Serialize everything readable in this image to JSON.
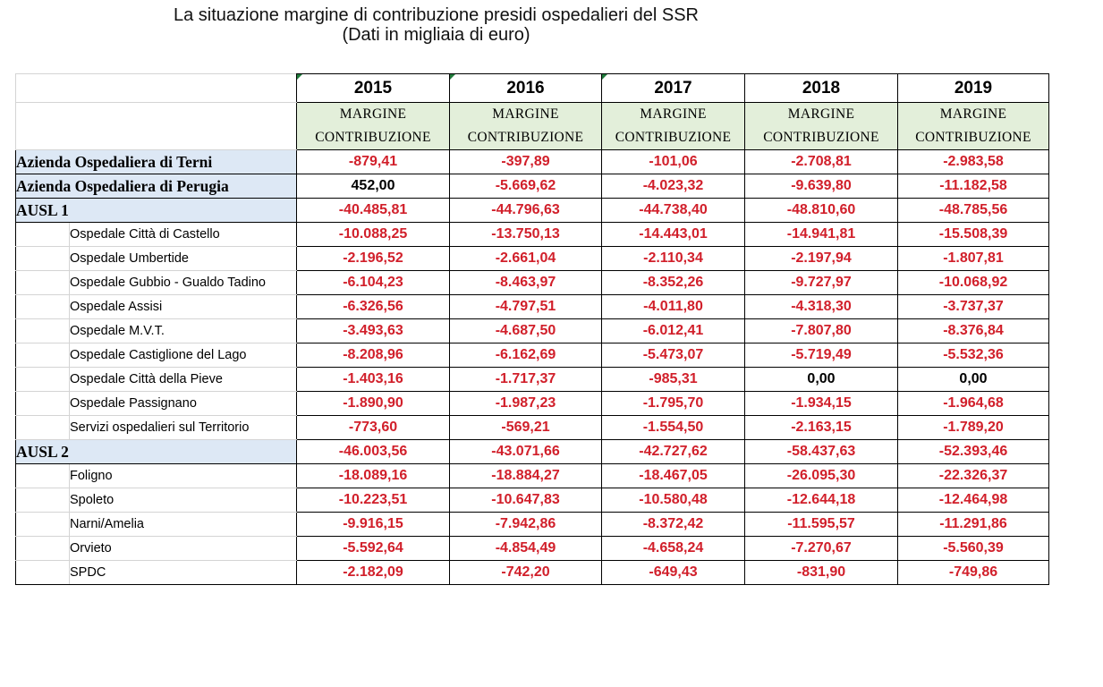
{
  "title": {
    "line1": "La situazione margine di contribuzione presidi ospedalieri del SSR",
    "line2": "(Dati in migliaia di euro)"
  },
  "table": {
    "years": [
      "2015",
      "2016",
      "2017",
      "2018",
      "2019"
    ],
    "metric_label": {
      "line1": "MARGINE",
      "line2": "CONTRIBUZIONE"
    },
    "rows": [
      {
        "label": "Azienda Ospedaliera di Terni",
        "level": "top",
        "values": [
          "-879,41",
          "-397,89",
          "-101,06",
          "-2.708,81",
          "-2.983,58"
        ]
      },
      {
        "label": "Azienda Ospedaliera di Perugia",
        "level": "top",
        "values": [
          "452,00",
          "-5.669,62",
          "-4.023,32",
          "-9.639,80",
          "-11.182,58"
        ]
      },
      {
        "label": "AUSL 1",
        "level": "ausl",
        "values": [
          "-40.485,81",
          "-44.796,63",
          "-44.738,40",
          "-48.810,60",
          "-48.785,56"
        ]
      },
      {
        "label": "Ospedale Città di Castello",
        "level": "sub",
        "values": [
          "-10.088,25",
          "-13.750,13",
          "-14.443,01",
          "-14.941,81",
          "-15.508,39"
        ]
      },
      {
        "label": "Ospedale Umbertide",
        "level": "sub",
        "values": [
          "-2.196,52",
          "-2.661,04",
          "-2.110,34",
          "-2.197,94",
          "-1.807,81"
        ]
      },
      {
        "label": "Ospedale Gubbio - Gualdo Tadino",
        "level": "sub",
        "values": [
          "-6.104,23",
          "-8.463,97",
          "-8.352,26",
          "-9.727,97",
          "-10.068,92"
        ]
      },
      {
        "label": "Ospedale Assisi",
        "level": "sub",
        "values": [
          "-6.326,56",
          "-4.797,51",
          "-4.011,80",
          "-4.318,30",
          "-3.737,37"
        ]
      },
      {
        "label": "Ospedale M.V.T.",
        "level": "sub",
        "values": [
          "-3.493,63",
          "-4.687,50",
          "-6.012,41",
          "-7.807,80",
          "-8.376,84"
        ]
      },
      {
        "label": "Ospedale Castiglione del Lago",
        "level": "sub",
        "values": [
          "-8.208,96",
          "-6.162,69",
          "-5.473,07",
          "-5.719,49",
          "-5.532,36"
        ]
      },
      {
        "label": "Ospedale Città della Pieve",
        "level": "sub",
        "values": [
          "-1.403,16",
          "-1.717,37",
          "-985,31",
          "0,00",
          "0,00"
        ]
      },
      {
        "label": "Ospedale Passignano",
        "level": "sub",
        "values": [
          "-1.890,90",
          "-1.987,23",
          "-1.795,70",
          "-1.934,15",
          "-1.964,68"
        ]
      },
      {
        "label": "Servizi ospedalieri sul Territorio",
        "level": "sub",
        "values": [
          "-773,60",
          "-569,21",
          "-1.554,50",
          "-2.163,15",
          "-1.789,20"
        ]
      },
      {
        "label": "AUSL 2",
        "level": "ausl",
        "values": [
          "-46.003,56",
          "-43.071,66",
          "-42.727,62",
          "-58.437,63",
          "-52.393,46"
        ]
      },
      {
        "label": "Foligno",
        "level": "sub",
        "values": [
          "-18.089,16",
          "-18.884,27",
          "-18.467,05",
          "-26.095,30",
          "-22.326,37"
        ]
      },
      {
        "label": "Spoleto",
        "level": "sub",
        "values": [
          "-10.223,51",
          "-10.647,83",
          "-10.580,48",
          "-12.644,18",
          "-12.464,98"
        ]
      },
      {
        "label": "Narni/Amelia",
        "level": "sub",
        "values": [
          "-9.916,15",
          "-7.942,86",
          "-8.372,42",
          "-11.595,57",
          "-11.291,86"
        ]
      },
      {
        "label": "Orvieto",
        "level": "sub",
        "values": [
          "-5.592,64",
          "-4.854,49",
          "-4.658,24",
          "-7.270,67",
          "-5.560,39"
        ]
      },
      {
        "label": "SPDC",
        "level": "sub",
        "values": [
          "-2.182,09",
          "-742,20",
          "-649,43",
          "-831,90",
          "-749,86"
        ]
      }
    ],
    "colors": {
      "negative": "#d11f2a",
      "non_negative": "#000000",
      "header_fill": "#e3efda",
      "group_fill": "#dde8f5"
    }
  }
}
